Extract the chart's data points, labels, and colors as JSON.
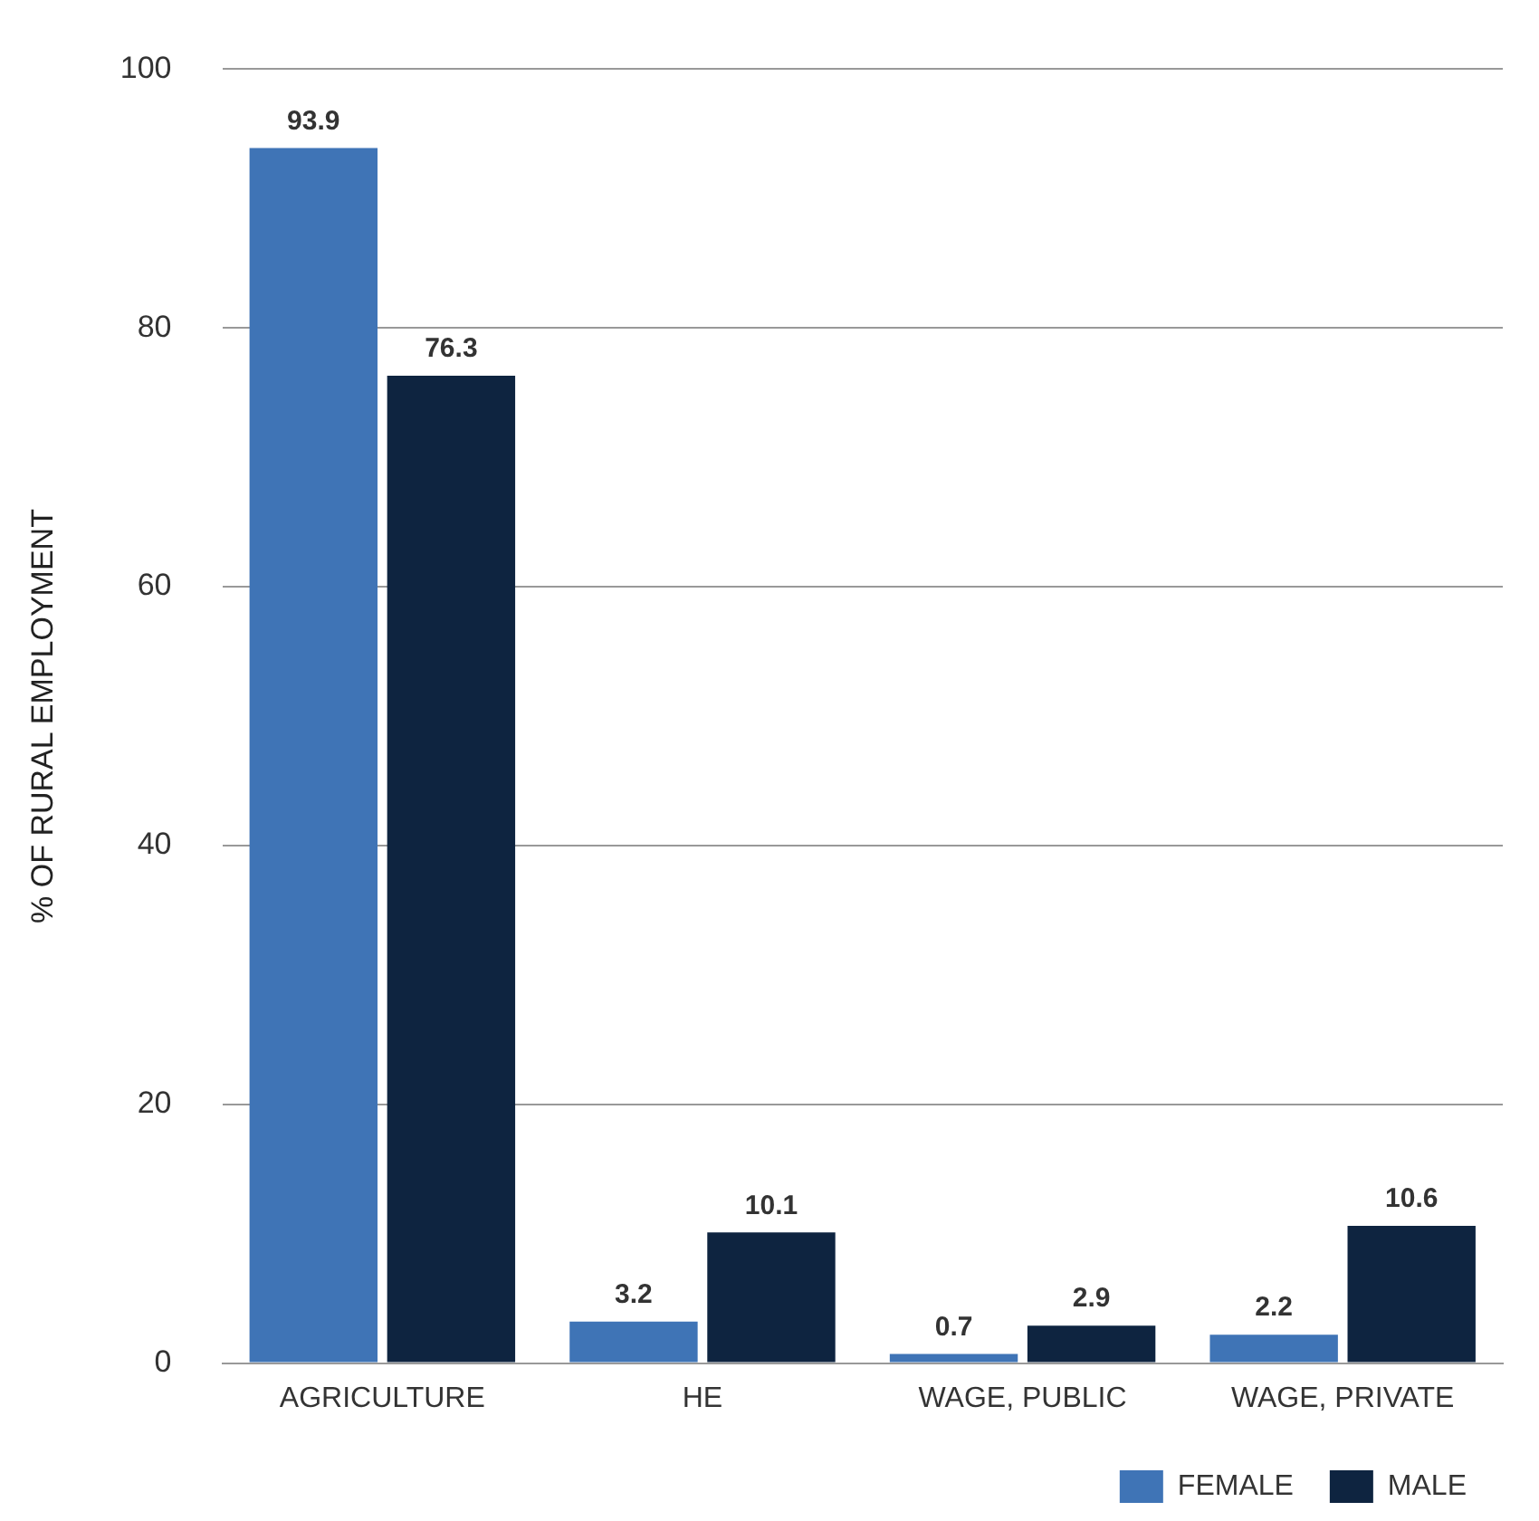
{
  "chart_data": {
    "type": "bar",
    "ylabel": "% OF RURAL EMPLOYMENT",
    "categories": [
      "AGRICULTURE",
      "HE",
      "WAGE, PUBLIC",
      "WAGE, PRIVATE"
    ],
    "series": [
      {
        "name": "FEMALE",
        "color": "#3f74b6",
        "values": [
          93.9,
          3.2,
          0.7,
          2.2
        ]
      },
      {
        "name": "MALE",
        "color": "#0e2440",
        "values": [
          76.3,
          10.1,
          2.9,
          10.6
        ]
      }
    ],
    "ylim": [
      0,
      100
    ],
    "yticks": [
      0,
      20,
      40,
      60,
      80,
      100
    ],
    "grid": "y",
    "legend": "bottom right",
    "data_labels": true
  }
}
